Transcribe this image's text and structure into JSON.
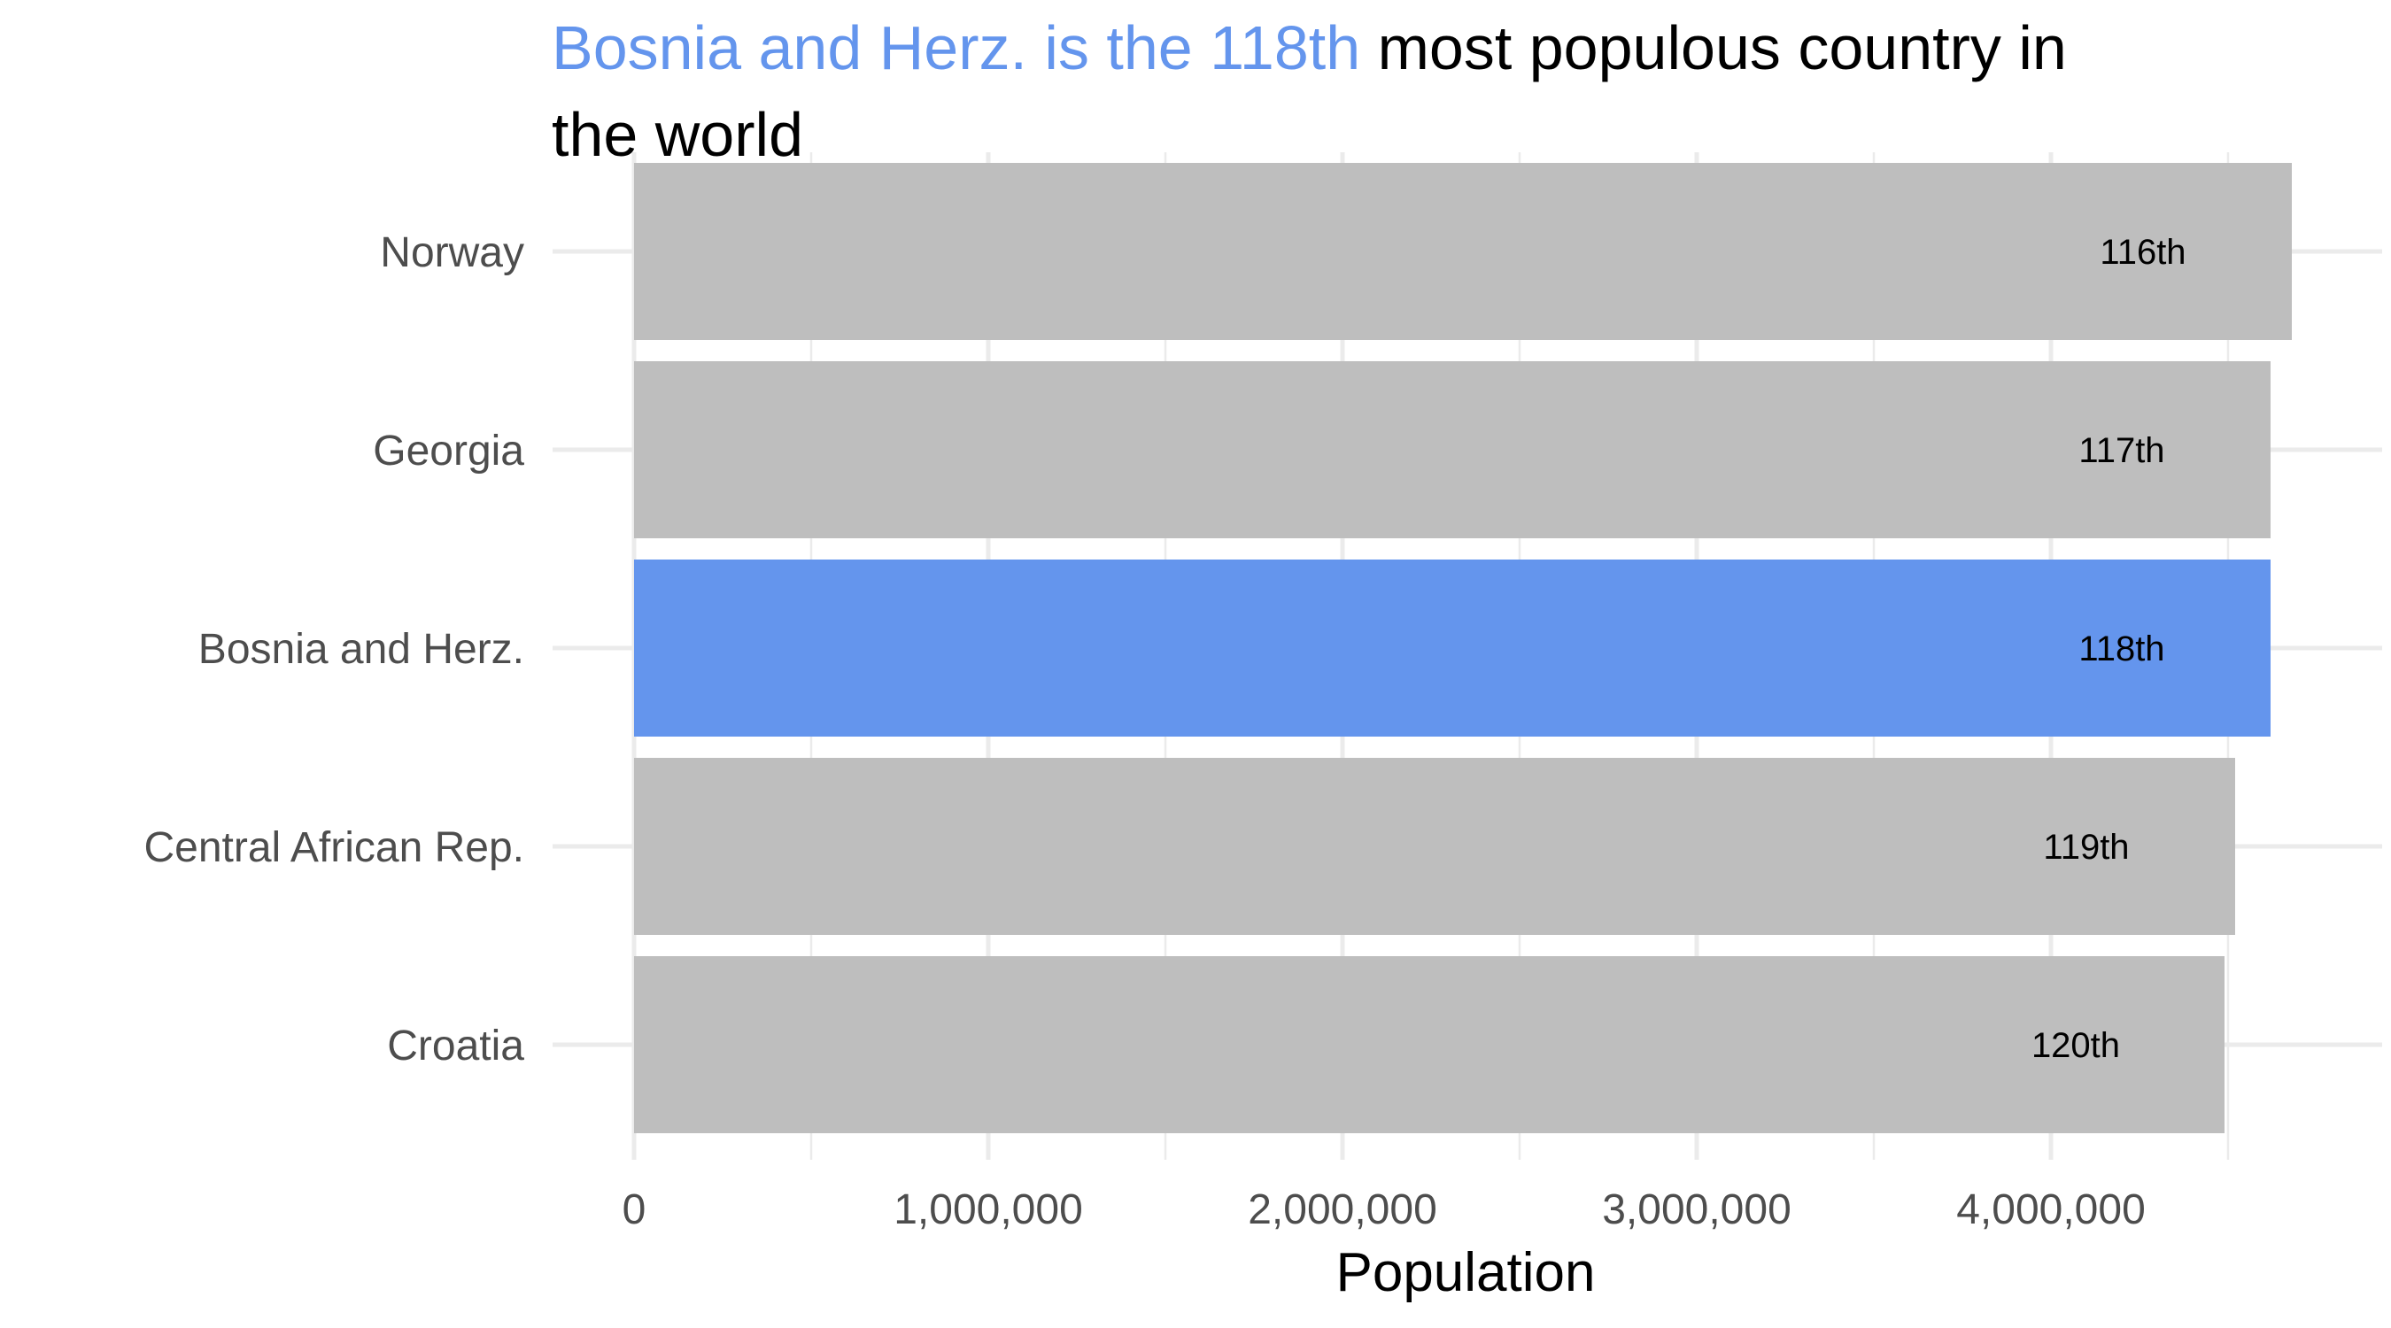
{
  "title": {
    "highlight": "Bosnia and Herz. is the 118th",
    "rest_line1": " most populous country in",
    "line2": "the world"
  },
  "colors": {
    "highlight": "#6495ED",
    "bar": "#BEBEBE",
    "text": "#000000",
    "axis_text": "#4D4D4D",
    "grid": "#EBEBEB"
  },
  "chart_data": {
    "type": "bar",
    "orientation": "horizontal",
    "categories": [
      "Norway",
      "Georgia",
      "Bosnia and Herz.",
      "Central African Rep.",
      "Croatia"
    ],
    "values": [
      4680000,
      4620000,
      4620000,
      4520000,
      4490000
    ],
    "rank_labels": [
      "116th",
      "117th",
      "118th",
      "119th",
      "120th"
    ],
    "highlighted_category": "Bosnia and Herz.",
    "xlabel": "Population",
    "ylabel": "",
    "xlim": [
      0,
      4700000
    ],
    "x_ticks": [
      0,
      1000000,
      2000000,
      3000000,
      4000000
    ],
    "x_tick_labels": [
      "0",
      "1,000,000",
      "2,000,000",
      "3,000,000",
      "4,000,000"
    ],
    "grid": true,
    "legend": "none"
  }
}
